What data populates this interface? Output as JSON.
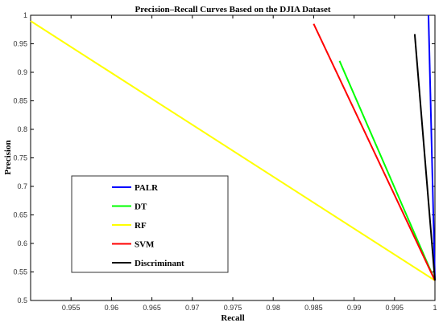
{
  "chart_data": {
    "type": "line",
    "title": "Precision–Recall Curves Based on the DJIA Dataset",
    "xlabel": "Recall",
    "ylabel": "Precision",
    "xlim": [
      0.95,
      1.0
    ],
    "ylim": [
      0.5,
      1.0
    ],
    "xticks": [
      0.955,
      0.96,
      0.965,
      0.97,
      0.975,
      0.98,
      0.985,
      0.99,
      0.995,
      1
    ],
    "xtick_labels": [
      "0.955",
      "0.96",
      "0.965",
      "0.97",
      "0.975",
      "0.98",
      "0.985",
      "0.99",
      "0.995",
      "1"
    ],
    "yticks": [
      0.5,
      0.55,
      0.6,
      0.65,
      0.7,
      0.75,
      0.8,
      0.85,
      0.9,
      0.95,
      1
    ],
    "ytick_labels": [
      "0.5",
      "0.55",
      "0.6",
      "0.65",
      "0.7",
      "0.75",
      "0.8",
      "0.85",
      "0.9",
      "0.95",
      "1"
    ],
    "grid": false,
    "legend_position": "lower-left",
    "series": [
      {
        "name": "PALR",
        "color": "#0000ff",
        "x": [
          0.9992,
          1.0
        ],
        "y": [
          1.0,
          0.535
        ]
      },
      {
        "name": "DT",
        "color": "#00ff00",
        "x": [
          0.9882,
          1.0
        ],
        "y": [
          0.92,
          0.535
        ]
      },
      {
        "name": "RF",
        "color": "#ffff00",
        "x": [
          0.95,
          1.0
        ],
        "y": [
          0.99,
          0.535
        ]
      },
      {
        "name": "SVM",
        "color": "#ff0000",
        "x": [
          0.985,
          1.0
        ],
        "y": [
          0.985,
          0.535
        ]
      },
      {
        "name": "Discriminant",
        "color": "#000000",
        "x": [
          0.9975,
          1.0
        ],
        "y": [
          0.967,
          0.535
        ]
      }
    ]
  }
}
